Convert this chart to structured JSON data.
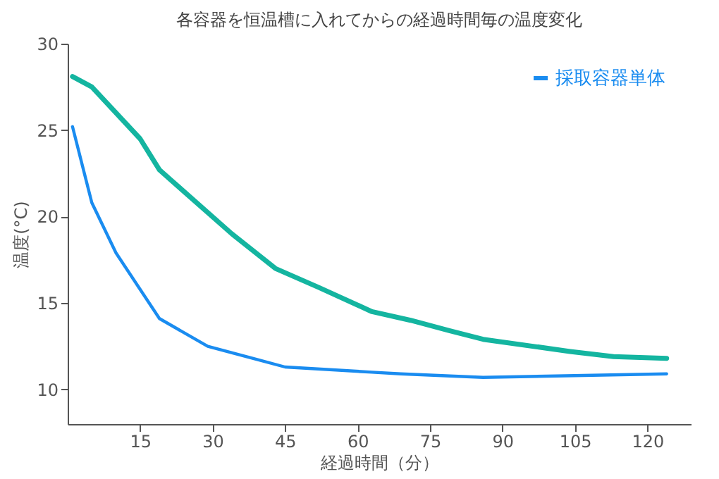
{
  "chart_data": {
    "type": "line",
    "title": "各容器を恒温槽に入れてからの経過時間毎の温度変化",
    "xlabel": "経過時間（分）",
    "ylabel": "温度(°C)",
    "series": [
      {
        "color": "#14b5a0",
        "x": [
          1,
          5,
          15,
          19,
          34,
          43,
          52,
          63,
          71,
          79,
          86,
          104,
          113,
          124
        ],
        "values": [
          28.1,
          27.5,
          24.5,
          22.7,
          19.0,
          17.0,
          15.9,
          14.5,
          14.0,
          13.4,
          12.9,
          12.2,
          11.9,
          11.8
        ]
      },
      {
        "name": "採取容器単体",
        "color": "#1a8cf0",
        "x": [
          1,
          5,
          10,
          19,
          29,
          45,
          63,
          69,
          86,
          124
        ],
        "values": [
          25.2,
          20.8,
          17.9,
          14.1,
          12.5,
          11.3,
          11.0,
          10.9,
          10.7,
          10.9
        ]
      }
    ],
    "xlim": [
      0,
      129
    ],
    "xticks": [
      15,
      30,
      45,
      60,
      75,
      90,
      105,
      120
    ],
    "ylim": [
      8,
      30
    ],
    "yticks": [
      10,
      15,
      20,
      25,
      30
    ],
    "grid": false,
    "legend": "top right",
    "marker": "none",
    "line_style": "solid"
  }
}
